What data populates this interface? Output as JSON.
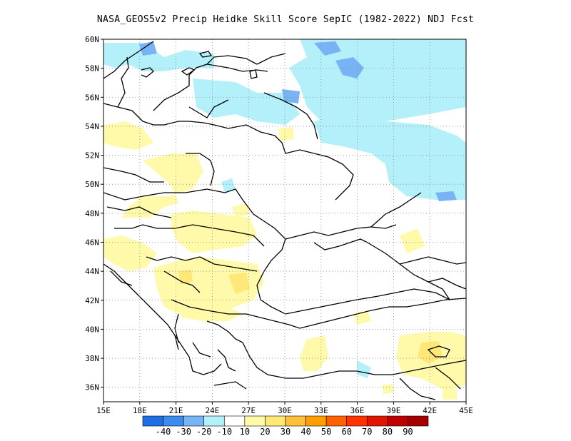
{
  "title": "NASA_GEOS5v2 Precip Heidke Skill Score SepIC (1982-2022) NDJ Fcst",
  "map": {
    "lon_range": [
      15,
      45
    ],
    "lat_range": [
      35,
      60
    ],
    "lon_ticks": [
      "15E",
      "18E",
      "21E",
      "24E",
      "27E",
      "30E",
      "33E",
      "36E",
      "39E",
      "42E",
      "45E"
    ],
    "lat_ticks": [
      "36N",
      "38N",
      "40N",
      "42N",
      "44N",
      "46N",
      "48N",
      "50N",
      "52N",
      "54N",
      "56N",
      "58N",
      "60N"
    ],
    "grid": "dotted"
  },
  "colorbar": {
    "colors": [
      "#1e6ee6",
      "#3c8cf0",
      "#78b4f5",
      "#b4f0fa",
      "#ffffff",
      "#fffaaa",
      "#ffe878",
      "#ffc03c",
      "#ffa000",
      "#ff6000",
      "#ff3200",
      "#e11400",
      "#c00000",
      "#a50000"
    ],
    "labels": [
      "-40",
      "-30",
      "-20",
      "-10",
      "10",
      "20",
      "30",
      "40",
      "50",
      "60",
      "70",
      "80",
      "90"
    ]
  },
  "shading": {
    "light_blue": "#b4f0fa",
    "mid_blue": "#78b4f5",
    "light_yellow": "#fffaaa",
    "orange_yellow": "#ffe878"
  }
}
